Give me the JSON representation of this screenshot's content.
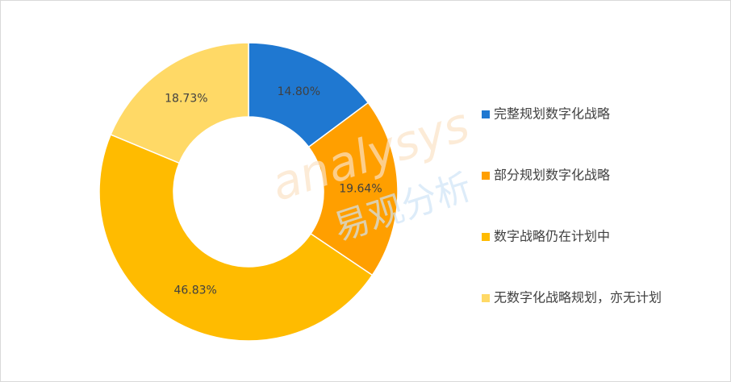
{
  "chart_data": {
    "type": "donut",
    "categories": [
      "完整规划数字化战略",
      "部分规划数字化战略",
      "数字战略仍在计划中",
      "无数字化战略规划，亦无计划"
    ],
    "values": [
      14.8,
      19.64,
      46.83,
      18.73
    ],
    "value_labels": [
      "14.80%",
      "19.64%",
      "46.83%",
      "18.73%"
    ],
    "colors": [
      "#1f78d1",
      "#ff9f00",
      "#ffbb00",
      "#ffd966"
    ],
    "legend": "right",
    "watermark": [
      "analysys",
      "易观分析"
    ]
  }
}
